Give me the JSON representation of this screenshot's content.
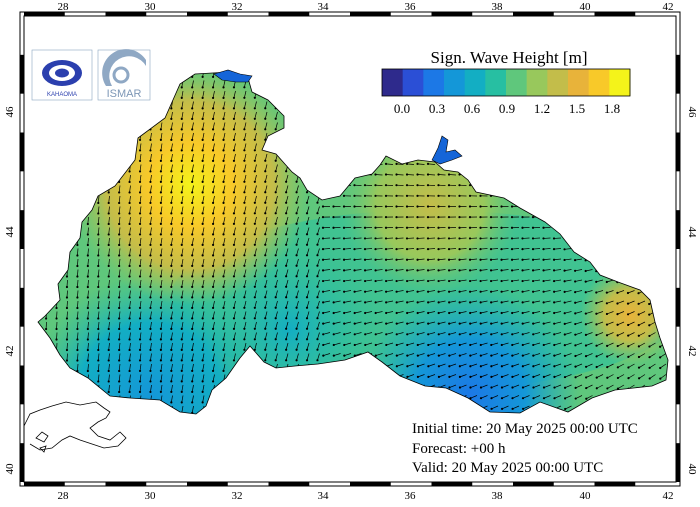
{
  "colorbar": {
    "title": "Sign. Wave Height [m]",
    "tick_labels": [
      "0.0",
      "0.3",
      "0.6",
      "0.9",
      "1.2",
      "1.5",
      "1.8"
    ],
    "colors": [
      "#2e2a8c",
      "#2b4fd6",
      "#1c78e6",
      "#1497d8",
      "#13aec3",
      "#27bfa2",
      "#5fc77c",
      "#98c85c",
      "#c3bd4a",
      "#e8b33a",
      "#f8c929",
      "#f4f31a"
    ]
  },
  "axes": {
    "x_ticks": [
      "28",
      "30",
      "32",
      "34",
      "36",
      "38",
      "40",
      "42"
    ],
    "y_ticks": [
      "40",
      "42",
      "44",
      "46"
    ]
  },
  "info": {
    "initial_time": "Initial time: 20 May 2025 00:00 UTC",
    "forecast": "Forecast: +00 h",
    "valid": "Valid: 20 May 2025 00:00 UTC"
  },
  "logos": [
    {
      "name": "kahaoma-logo",
      "text": "KAHAOMA"
    },
    {
      "name": "ismar-logo",
      "text": "ISMAR"
    }
  ],
  "colors": {
    "land_outline": "#000000",
    "frame": "#000000",
    "sea_patch": "#1565d8"
  }
}
